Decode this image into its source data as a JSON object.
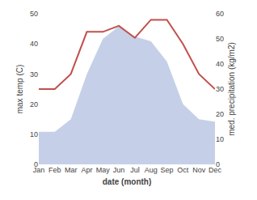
{
  "chart_data": {
    "type": "line",
    "xlabel": "date (month)",
    "ylabel": "max temp (C)",
    "y2label": "med. precipitation (kg/m2)",
    "categories": [
      "Jan",
      "Feb",
      "Mar",
      "Apr",
      "May",
      "Jun",
      "Jul",
      "Aug",
      "Sep",
      "Oct",
      "Nov",
      "Dec"
    ],
    "series": [
      {
        "type": "area",
        "axis": "y2",
        "color": "#c5d0e8",
        "values": [
          13,
          13,
          18,
          36,
          50,
          55,
          51,
          49,
          41,
          24,
          18,
          17
        ]
      },
      {
        "type": "line",
        "color": "#c0504d",
        "values": [
          25,
          25,
          30,
          44,
          44,
          46,
          42,
          48,
          48,
          40,
          30,
          25
        ]
      }
    ],
    "ylim": [
      0,
      50
    ],
    "yticks": [
      0,
      10,
      20,
      30,
      40,
      50
    ],
    "y2lim": [
      0,
      60
    ],
    "y2ticks": [
      0,
      10,
      20,
      30,
      40,
      50,
      60
    ],
    "grid": false
  }
}
